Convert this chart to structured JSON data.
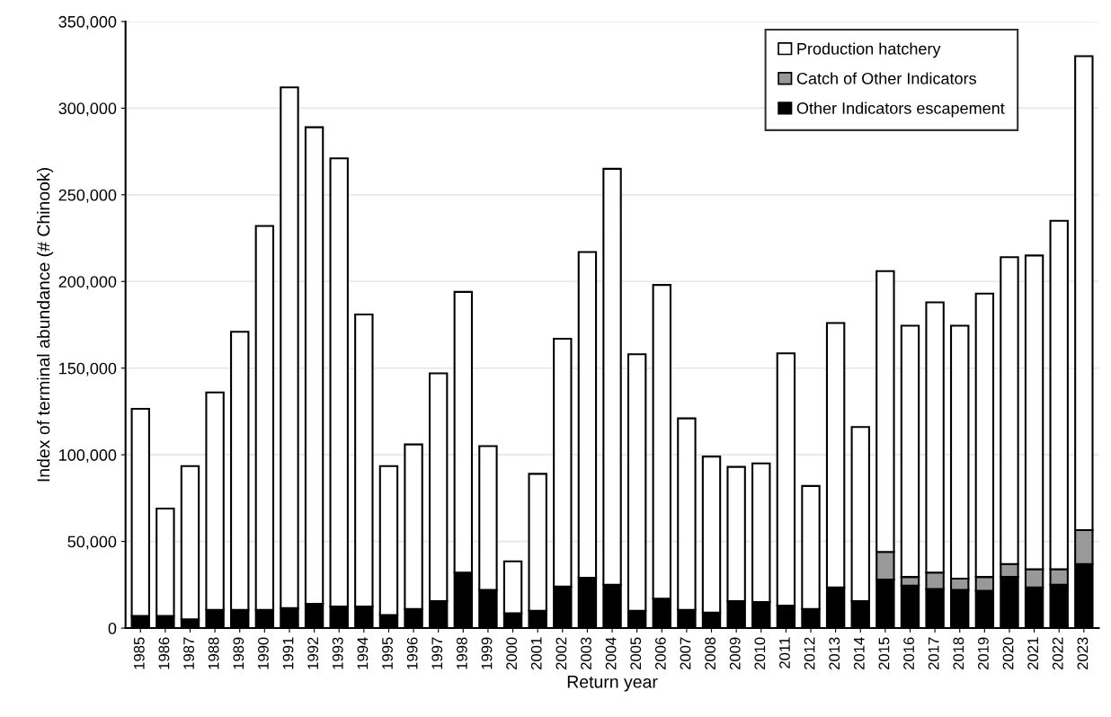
{
  "chart_data": {
    "type": "bar",
    "stacked": true,
    "xlabel": "Return year",
    "ylabel": "Index of terminal abundance (# Chinook)",
    "categories": [
      "1985",
      "1986",
      "1987",
      "1988",
      "1989",
      "1990",
      "1991",
      "1992",
      "1993",
      "1994",
      "1995",
      "1996",
      "1997",
      "1998",
      "1999",
      "2000",
      "2001",
      "2002",
      "2003",
      "2004",
      "2005",
      "2006",
      "2007",
      "2008",
      "2009",
      "2010",
      "2011",
      "2012",
      "2013",
      "2014",
      "2015",
      "2016",
      "2017",
      "2018",
      "2019",
      "2020",
      "2021",
      "2022",
      "2023"
    ],
    "series": [
      {
        "name": "Other Indicators escapement",
        "color": "#000000",
        "values": [
          7000,
          7000,
          5000,
          10500,
          10500,
          10500,
          11500,
          14000,
          12500,
          12500,
          7500,
          11000,
          15500,
          32000,
          22000,
          8500,
          10000,
          24000,
          29000,
          25000,
          10000,
          17000,
          10500,
          9000,
          15500,
          15000,
          13000,
          11000,
          23500,
          15500,
          28000,
          24500,
          22500,
          22000,
          21500,
          29500,
          23500,
          25000,
          37000
        ]
      },
      {
        "name": "Catch of Other Indicators",
        "color": "#999999",
        "values": [
          0,
          0,
          0,
          0,
          0,
          0,
          0,
          0,
          0,
          0,
          0,
          0,
          0,
          0,
          0,
          0,
          0,
          0,
          0,
          0,
          0,
          0,
          0,
          0,
          0,
          0,
          0,
          0,
          0,
          0,
          16000,
          5000,
          9500,
          6500,
          8000,
          7500,
          10500,
          9000,
          19500
        ]
      },
      {
        "name": "Production hatchery",
        "color": "#ffffff",
        "values": [
          119500,
          62000,
          88500,
          125500,
          160500,
          221500,
          300500,
          275000,
          258500,
          168500,
          86000,
          95000,
          131500,
          162000,
          83000,
          30000,
          79000,
          143000,
          188000,
          240000,
          148000,
          181000,
          110500,
          90000,
          77500,
          80000,
          145500,
          71000,
          152500,
          100500,
          162000,
          145000,
          156000,
          146000,
          163500,
          177000,
          181000,
          201000,
          273500
        ]
      }
    ],
    "ylim": [
      0,
      350000
    ],
    "yticks": [
      {
        "value": 0,
        "label": "0"
      },
      {
        "value": 50000,
        "label": "50,000"
      },
      {
        "value": 100000,
        "label": "100,000"
      },
      {
        "value": 150000,
        "label": "150,000"
      },
      {
        "value": 200000,
        "label": "200,000"
      },
      {
        "value": 250000,
        "label": "250,000"
      },
      {
        "value": 300000,
        "label": "300,000"
      },
      {
        "value": 350000,
        "label": "350,000"
      }
    ],
    "grid": "y",
    "legend": "top right"
  }
}
